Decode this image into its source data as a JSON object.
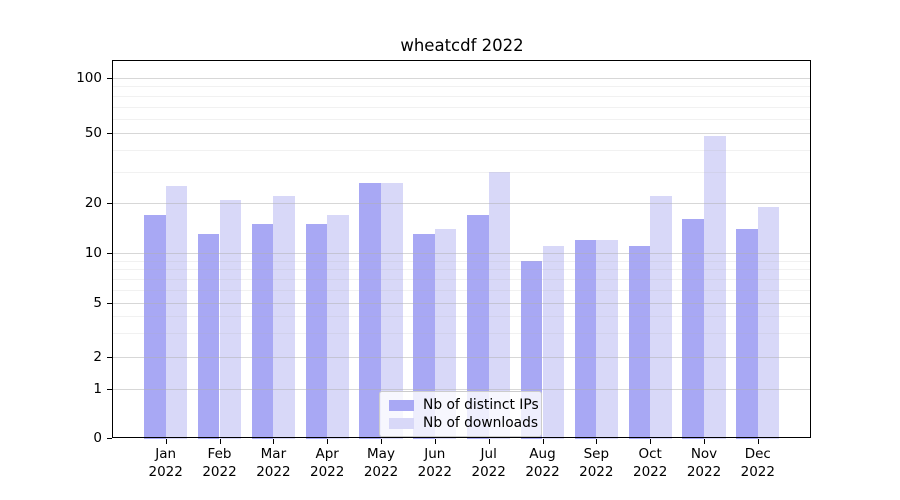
{
  "chart_data": {
    "type": "bar",
    "title": "wheatcdf 2022",
    "categories": [
      "Jan",
      "Feb",
      "Mar",
      "Apr",
      "May",
      "Jun",
      "Jul",
      "Aug",
      "Sep",
      "Oct",
      "Nov",
      "Dec"
    ],
    "category_sublabel": "2022",
    "series": [
      {
        "name": "Nb of distinct IPs",
        "color": "#a8a8f4",
        "values": [
          17,
          13,
          15,
          15,
          26,
          13,
          17,
          9,
          12,
          11,
          16,
          14
        ]
      },
      {
        "name": "Nb of downloads",
        "color": "#d8d8f8",
        "values": [
          25,
          21,
          22,
          17,
          26,
          14,
          30,
          11,
          12,
          22,
          48,
          19
        ]
      }
    ],
    "xlabel": "",
    "ylabel": "",
    "yscale": "symlog",
    "ylim": [
      0,
      125
    ],
    "yticks_major": [
      0,
      1,
      2,
      5,
      10,
      20,
      50,
      100
    ],
    "y_tick_labels": [
      "0",
      "1",
      "2",
      "5",
      "10",
      "20",
      "50",
      "100"
    ],
    "yticks_minor": [
      3,
      4,
      6,
      7,
      8,
      9,
      30,
      40,
      60,
      70,
      80,
      90
    ],
    "grid": true,
    "grid_major_alpha": 0.5,
    "grid_minor_alpha": 0.2,
    "legend_position": "lower-center"
  }
}
